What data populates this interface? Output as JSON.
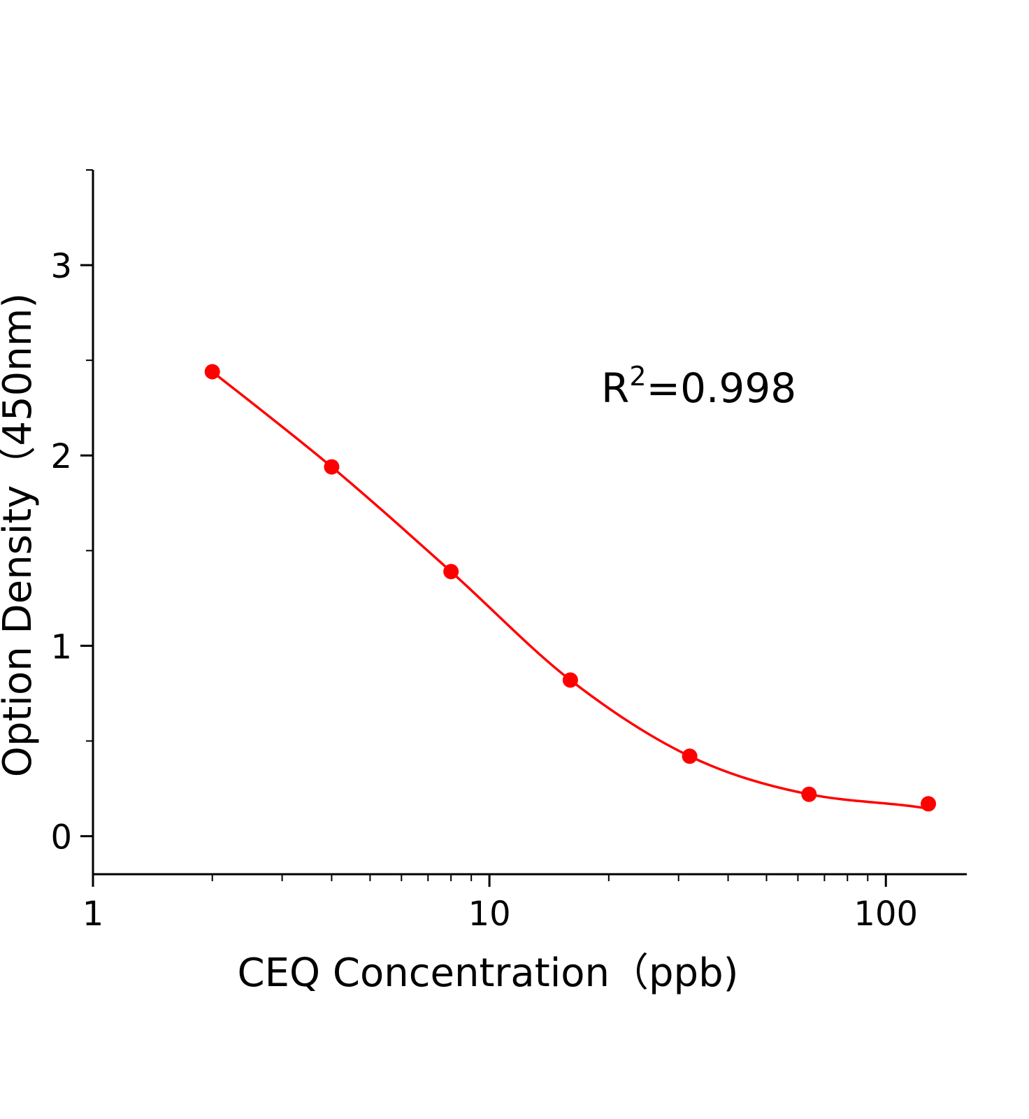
{
  "chart_data": {
    "type": "scatter",
    "title": "",
    "xlabel": "CEQ  Concentration（ppb)",
    "ylabel": "Option Density（450nm)",
    "x_scale": "log",
    "xlim": [
      1,
      160
    ],
    "ylim": [
      -0.2,
      3.5
    ],
    "x_ticks": [
      1,
      10,
      100
    ],
    "x_tick_labels": [
      "1",
      "10",
      "100"
    ],
    "y_ticks": [
      0,
      1,
      2,
      3
    ],
    "y_tick_labels": [
      "0",
      "1",
      "2",
      "3"
    ],
    "grid": false,
    "annotation": {
      "base": "R",
      "sup": "2",
      "rest": "=0.998"
    },
    "series": [
      {
        "x": [
          2,
          4,
          8,
          16,
          32,
          64,
          128
        ],
        "y": [
          2.44,
          1.94,
          1.39,
          0.82,
          0.42,
          0.22,
          0.17
        ],
        "fit_line": true,
        "color": "#ff0000"
      }
    ]
  }
}
